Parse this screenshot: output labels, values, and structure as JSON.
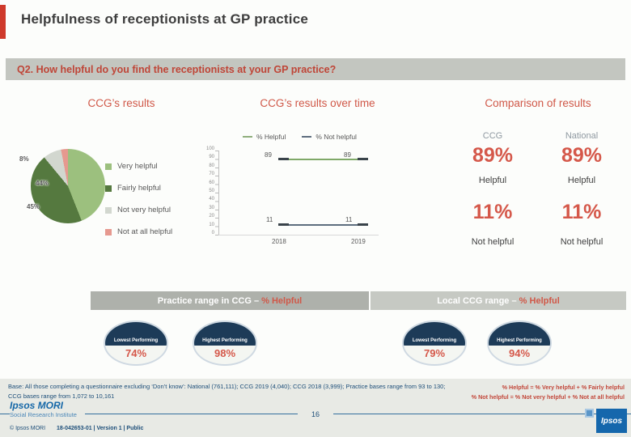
{
  "slide": {
    "title": "Helpfulness of receptionists at GP practice",
    "question": "Q2. How helpful do you find the receptionists at your GP practice?"
  },
  "sections": {
    "left_header": "CCG’s results",
    "middle_header": "CCG’s results over time",
    "right_header": "Comparison of results"
  },
  "chart_data": [
    {
      "type": "pie",
      "title": "CCG’s results",
      "labels": [
        "Very helpful",
        "Fairly helpful",
        "Not very helpful",
        "Not at all helpful"
      ],
      "values": [
        44,
        45,
        8,
        3
      ],
      "displayed_labels": [
        "44%",
        "45%",
        "8%"
      ],
      "colors": [
        "#9cc07e",
        "#55793f",
        "#d2d7cf",
        "#e6998f"
      ]
    },
    {
      "type": "line",
      "title": "CCG’s results over time",
      "x": [
        "2018",
        "2019"
      ],
      "series": [
        {
          "name": "% Helpful",
          "values": [
            89,
            89
          ]
        },
        {
          "name": "% Not helpful",
          "values": [
            11,
            11
          ]
        }
      ],
      "ylim": [
        0,
        100
      ],
      "yticks": [
        "100",
        "90",
        "80",
        "70",
        "60",
        "50",
        "40",
        "30",
        "20",
        "10",
        "0"
      ],
      "legend_position": "top"
    },
    {
      "type": "table",
      "title": "Comparison of results",
      "columns": [
        "CCG",
        "National"
      ],
      "rows": [
        {
          "label": "Helpful",
          "values": [
            "89%",
            "89%"
          ]
        },
        {
          "label": "Not helpful",
          "values": [
            "11%",
            "11%"
          ]
        }
      ]
    },
    {
      "type": "table",
      "title": "Practice range in CCG – % Helpful",
      "rows": [
        {
          "label": "Lowest Performing",
          "value": "74%"
        },
        {
          "label": "Highest Performing",
          "value": "98%"
        }
      ]
    },
    {
      "type": "table",
      "title": "Local CCG range – % Helpful",
      "rows": [
        {
          "label": "Lowest Performing",
          "value": "79%"
        },
        {
          "label": "Highest Performing",
          "value": "94%"
        }
      ]
    }
  ],
  "banners": {
    "practice_prefix": "Practice range in CCG – ",
    "local_prefix": "Local CCG range – ",
    "highlight": "% Helpful"
  },
  "footnote": {
    "base": "Base: All those completing a questionnaire excluding ‘Don’t know’: National (761,111); CCG 2019 (4,040); CCG 2018 (3,999); Practice bases range from 93 to 130; CCG bases range from 1,072 to 10,161",
    "formula_helpful": "% Helpful = % Very helpful + % Fairly helpful",
    "formula_not_helpful": "% Not helpful = % Not very helpful + % Not at all helpful"
  },
  "footer": {
    "logo_line1": "Ipsos MORI",
    "logo_line2": "Social Research Institute",
    "copyright": "© Ipsos MORI",
    "doc_ref": "18-042653-01 | Version 1 | Public",
    "page": "16",
    "corner_logo": "Ipsos"
  },
  "colors": {
    "accent_red": "#cf3a2b",
    "heading_red": "#d05848",
    "value_red": "#d5584a",
    "navy": "#1d3b58",
    "footer_blue": "#1d4e79",
    "logo_blue": "#1668a8",
    "banner_gray": "#aeb1ab"
  }
}
